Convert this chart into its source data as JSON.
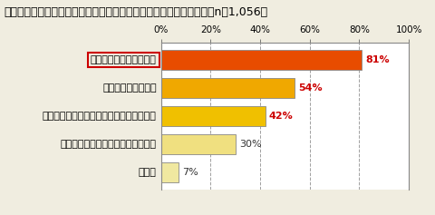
{
  "title": "コンビニの深夜営業規制に反対の理由は何ですか。（複数回答可）【n＝1,056】",
  "categories": [
    "買い物できないのは不便",
    "防犯に役立っている",
    "省エネの効果がどれだけあるか分からない",
    "そこで働いている人の職がなくなる",
    "その他"
  ],
  "values": [
    81,
    54,
    42,
    30,
    7
  ],
  "bar_colors": [
    "#e84c00",
    "#f0a800",
    "#f0c000",
    "#f0e080",
    "#f0e8a0"
  ],
  "value_colors": [
    "#cc0000",
    "#cc0000",
    "#cc0000",
    "#333333",
    "#333333"
  ],
  "xlim": [
    0,
    100
  ],
  "xticks": [
    0,
    20,
    40,
    60,
    80,
    100
  ],
  "xlabel_labels": [
    "0%",
    "20%",
    "40%",
    "60%",
    "80%",
    "100%"
  ],
  "highlight_index": 0,
  "highlight_box_color": "#cc0000",
  "background_color": "#f0ede0",
  "bar_area_bg": "#ffffff",
  "bar_edge_color": "#888888",
  "grid_color": "#888888",
  "title_fontsize": 9,
  "tick_fontsize": 7.5,
  "label_fontsize": 8,
  "value_fontsize": 8
}
